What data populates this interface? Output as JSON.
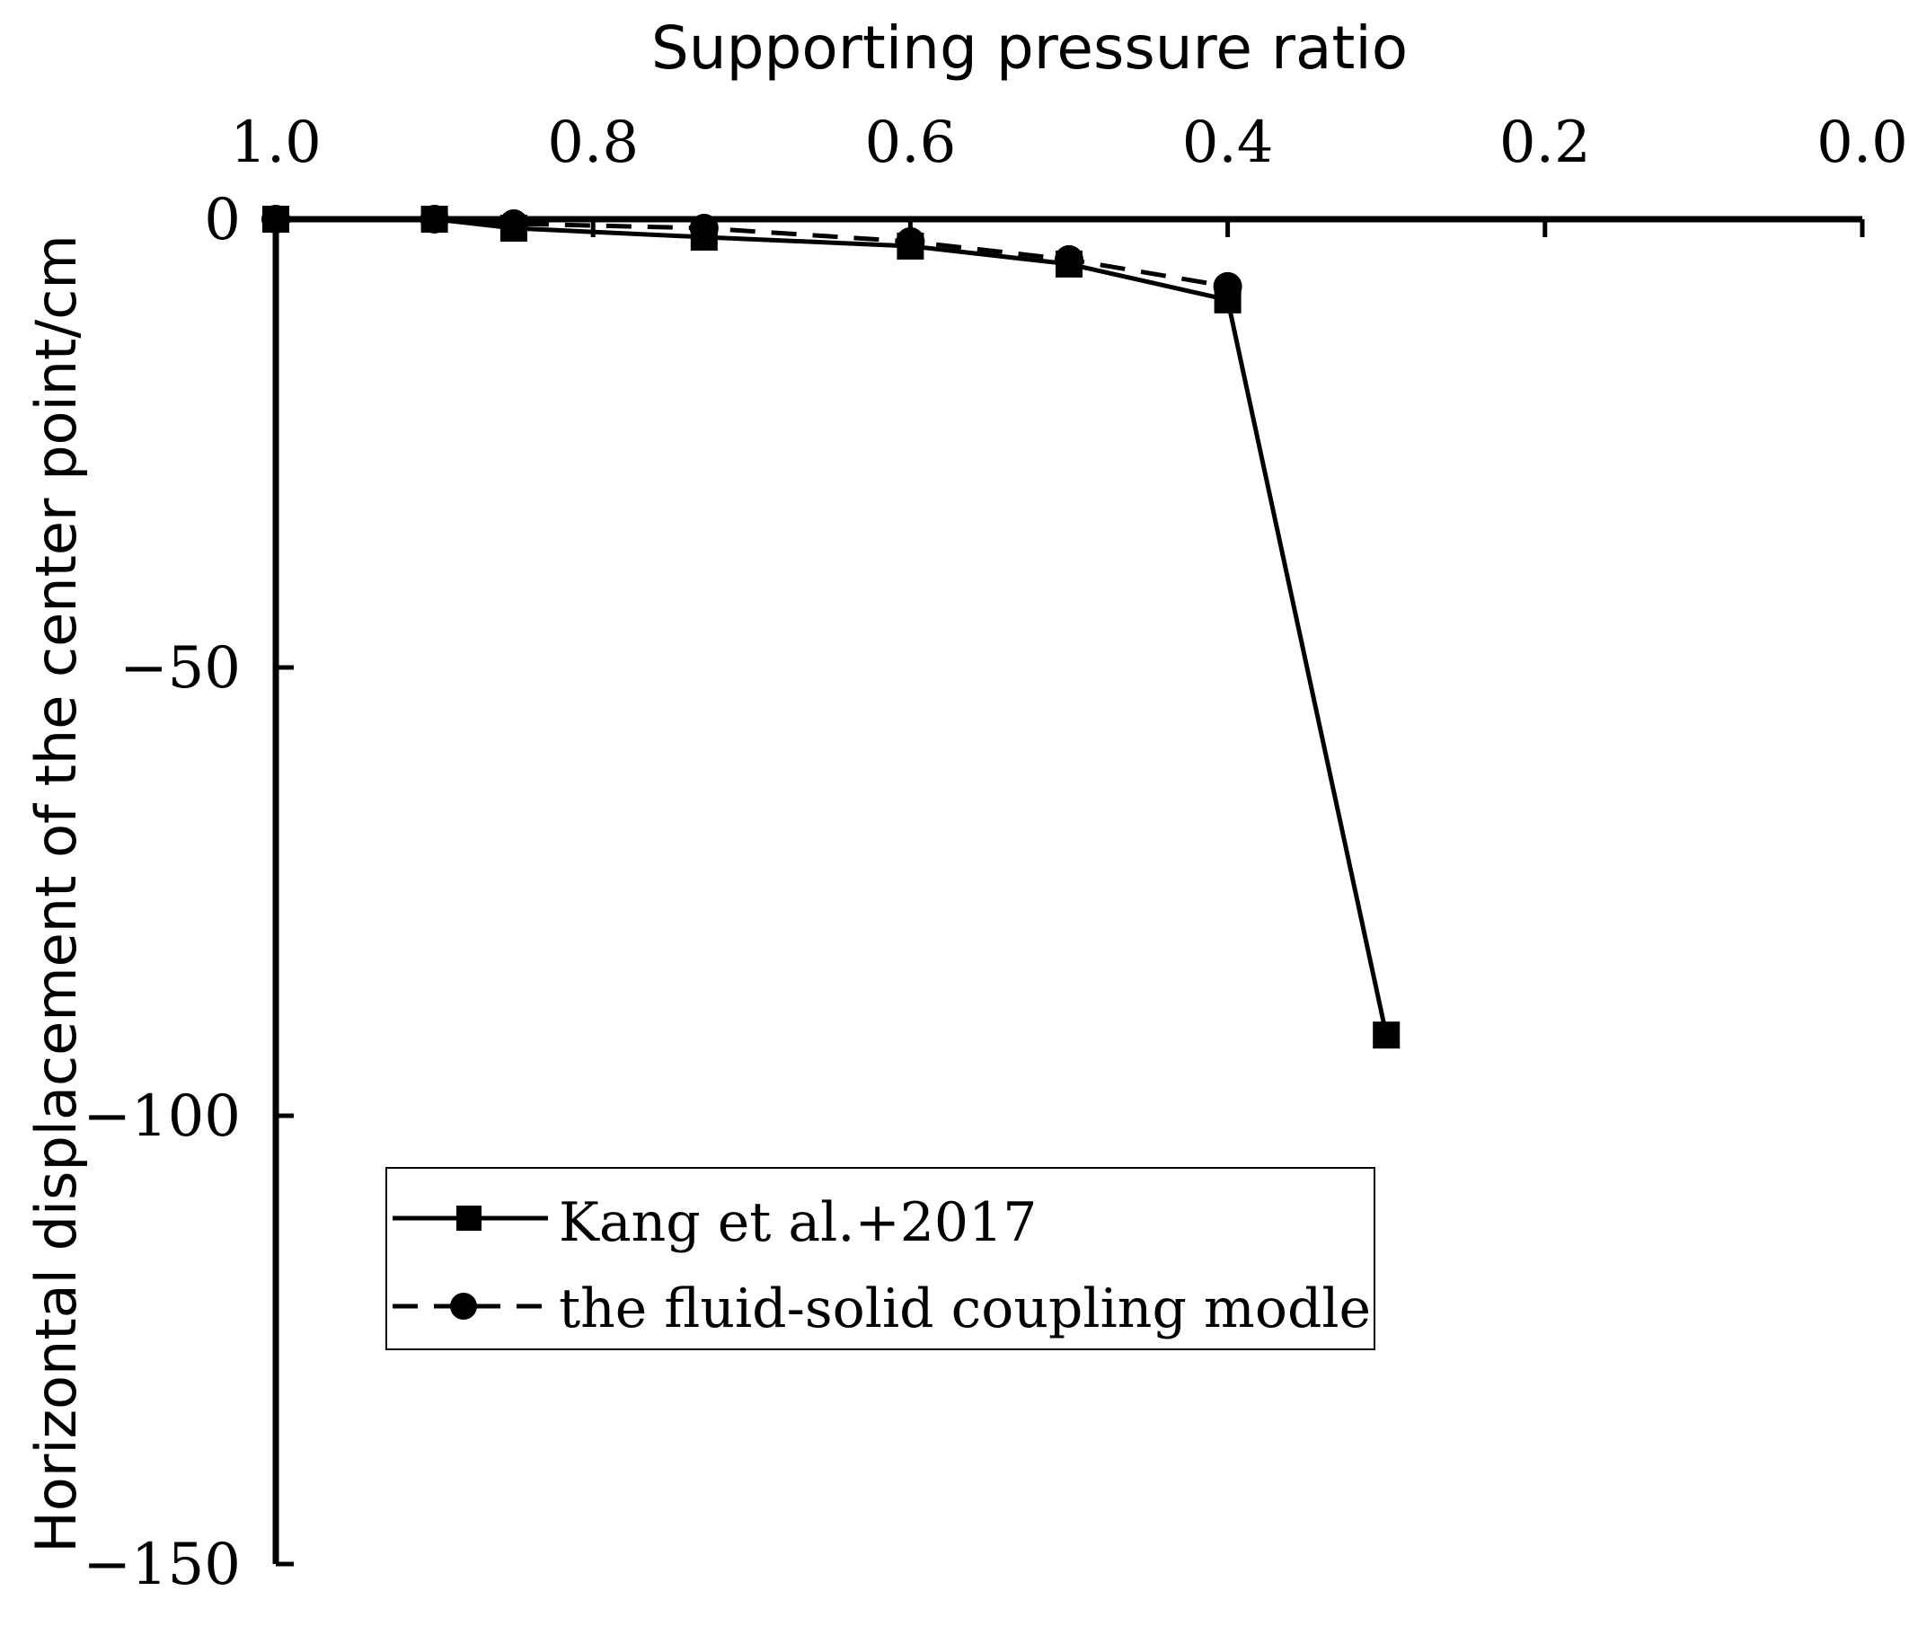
{
  "chart_data": {
    "type": "line",
    "title": "",
    "xlabel": "Supporting pressure ratio",
    "ylabel": "Horizontal displacement of the center point/cm",
    "xlim": [
      1.0,
      0.0
    ],
    "ylim": [
      -150,
      0
    ],
    "x_axis_position": "top",
    "x_ticks": [
      "1.0",
      "0.8",
      "0.6",
      "0.4",
      "0.2",
      "0.0"
    ],
    "x_tick_values": [
      1.0,
      0.8,
      0.6,
      0.4,
      0.2,
      0.0
    ],
    "y_ticks": [
      "0",
      "−50",
      "−100",
      "−150"
    ],
    "y_tick_values": [
      0,
      -50,
      -100,
      -150
    ],
    "grid": false,
    "legend_position": "lower-center",
    "series": [
      {
        "name": "Kang et al.+2017",
        "line_style": "solid",
        "marker": "square",
        "color": "#000000",
        "x": [
          1.0,
          0.9,
          0.85,
          0.73,
          0.6,
          0.5,
          0.4,
          0.3
        ],
        "values": [
          0,
          0,
          -1,
          -2,
          -3,
          -5,
          -9,
          -91
        ]
      },
      {
        "name": "the fluid-solid coupling modle",
        "line_style": "dashed",
        "marker": "circle",
        "color": "#000000",
        "x": [
          1.0,
          0.9,
          0.85,
          0.73,
          0.6,
          0.5,
          0.4
        ],
        "values": [
          0,
          0,
          -0.5,
          -1,
          -2.5,
          -4.5,
          -7.5
        ]
      }
    ]
  }
}
